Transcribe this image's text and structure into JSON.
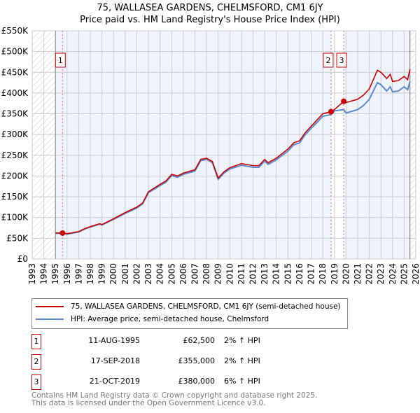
{
  "chart_data": {
    "type": "line",
    "title": "75, WALLASEA GARDENS, CHELMSFORD, CM1 6JY",
    "subtitle": "Price paid vs. HM Land Registry's House Price Index (HPI)",
    "xlim": [
      1993,
      2026
    ],
    "ylim": [
      0,
      550000
    ],
    "y_ticks": [
      "£0",
      "£50K",
      "£100K",
      "£150K",
      "£200K",
      "£250K",
      "£300K",
      "£350K",
      "£400K",
      "£450K",
      "£500K",
      "£550K"
    ],
    "x_ticks": [
      "1993",
      "1994",
      "1995",
      "1996",
      "1997",
      "1998",
      "1999",
      "2000",
      "2001",
      "2002",
      "2003",
      "2004",
      "2005",
      "2006",
      "2007",
      "2008",
      "2009",
      "2010",
      "2011",
      "2012",
      "2013",
      "2014",
      "2015",
      "2016",
      "2017",
      "2018",
      "2019",
      "2020",
      "2021",
      "2022",
      "2023",
      "2024",
      "2025",
      "2026"
    ],
    "series": [
      {
        "name": "75, WALLASEA GARDENS, CHELMSFORD, CM1 6JY (semi-detached house)",
        "color": "#cc0000",
        "x": [
          1995,
          1995.6,
          1996,
          1997,
          1997.5,
          1998,
          1998.8,
          1999,
          2000,
          2001,
          2002,
          2002.5,
          2003,
          2004,
          2004.5,
          2005,
          2005.5,
          2006,
          2007,
          2007.5,
          2008,
          2008.5,
          2009,
          2009.5,
          2010,
          2011,
          2012,
          2012.5,
          2013,
          2013.3,
          2014,
          2015,
          2015.5,
          2016,
          2016.5,
          2017,
          2017.5,
          2018,
          2018.7,
          2019,
          2019.8,
          2020,
          2021,
          2021.5,
          2022,
          2022.7,
          2023,
          2023.5,
          2023.8,
          2024,
          2024.5,
          2025,
          2025.3,
          2025.5
        ],
        "values": [
          63000,
          62500,
          61000,
          66000,
          73000,
          78000,
          85000,
          83000,
          97000,
          112000,
          125000,
          135000,
          162000,
          180000,
          188000,
          204000,
          200000,
          207000,
          215000,
          240000,
          243000,
          235000,
          195000,
          210000,
          220000,
          230000,
          225000,
          225000,
          240000,
          232000,
          243000,
          265000,
          280000,
          285000,
          305000,
          320000,
          335000,
          350000,
          355000,
          360000,
          380000,
          377000,
          385000,
          395000,
          410000,
          455000,
          450000,
          435000,
          445000,
          428000,
          430000,
          440000,
          432000,
          458000
        ]
      },
      {
        "name": "HPI: Average price, semi-detached house, Chelmsford",
        "color": "#5b8bd0",
        "x": [
          1995,
          1995.6,
          1996,
          1997,
          1997.5,
          1998,
          1998.8,
          1999,
          2000,
          2001,
          2002,
          2002.5,
          2003,
          2004,
          2004.5,
          2005,
          2005.5,
          2006,
          2007,
          2007.5,
          2008,
          2008.5,
          2009,
          2009.5,
          2010,
          2011,
          2012,
          2012.5,
          2013,
          2013.3,
          2014,
          2015,
          2015.5,
          2016,
          2016.5,
          2017,
          2017.5,
          2018,
          2018.7,
          2019,
          2019.8,
          2020,
          2021,
          2021.5,
          2022,
          2022.7,
          2023,
          2023.5,
          2023.8,
          2024,
          2024.5,
          2025,
          2025.3,
          2025.5
        ],
        "values": [
          62000,
          61500,
          60000,
          65000,
          72000,
          77000,
          84000,
          82000,
          95500,
          110000,
          123000,
          133000,
          160000,
          177000,
          185000,
          201000,
          197000,
          204000,
          212000,
          237000,
          240000,
          232000,
          192000,
          207000,
          217000,
          226000,
          221000,
          221000,
          236000,
          228000,
          239000,
          260000,
          275000,
          280000,
          300000,
          315000,
          329000,
          344000,
          348000,
          357000,
          360000,
          352000,
          360000,
          370000,
          385000,
          425000,
          420000,
          405000,
          415000,
          403000,
          405000,
          415000,
          408000,
          428000
        ]
      }
    ],
    "sales": [
      {
        "label": "1",
        "x": 1995.61,
        "value": 62500,
        "date": "11-AUG-1995",
        "price": "£62,500",
        "hpi": "2% ↑ HPI"
      },
      {
        "label": "2",
        "x": 2018.71,
        "value": 355000,
        "date": "17-SEP-2018",
        "price": "£355,000",
        "hpi": "2% ↑ HPI"
      },
      {
        "label": "3",
        "x": 2019.8,
        "value": 380000,
        "date": "21-OCT-2019",
        "price": "£380,000",
        "hpi": "6% ↑ HPI"
      }
    ],
    "data_range": [
      1995,
      2025.5
    ],
    "grid": true
  },
  "footer": {
    "line1": "Contains HM Land Registry data © Crown copyright and database right 2025.",
    "line2": "This data is licensed under the Open Government Licence v3.0."
  }
}
